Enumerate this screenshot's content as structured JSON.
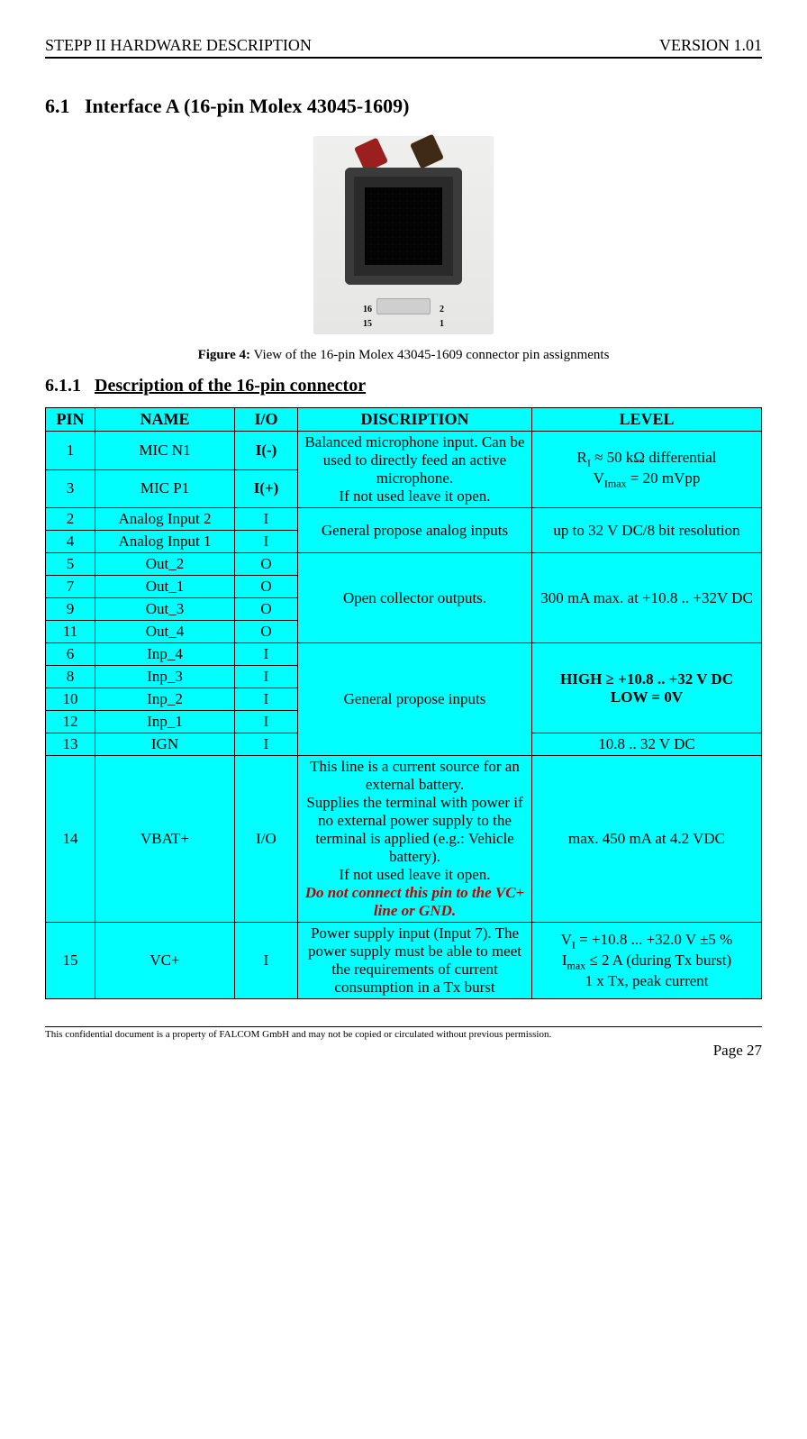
{
  "header": {
    "left": "STEPP II HARDWARE DESCRIPTION",
    "right": "VERSION 1.01"
  },
  "section": {
    "num": "6.1",
    "title": "Interface A (16-pin Molex 43045-1609)"
  },
  "figure": {
    "label_bold": "Figure 4:",
    "caption": " View of the 16-pin Molex 43045-1609 connector pin assignments",
    "pins": {
      "tl": "16",
      "tr": "2",
      "bl": "15",
      "br": "1"
    }
  },
  "subsection": {
    "num": "6.1.1",
    "title": "Description of the 16-pin connector"
  },
  "columns": {
    "pin": "PIN",
    "name": "NAME",
    "io": "I/O",
    "desc": "DISCRIPTION",
    "level": "LEVEL"
  },
  "rows": {
    "r1": {
      "pin": "1",
      "name": "MIC N1",
      "io": "I(-)"
    },
    "r3": {
      "pin": "3",
      "name": "MIC P1",
      "io": "I(+)"
    },
    "mic_desc": "Balanced microphone input. Can be used to directly feed an active microphone.\nIf not used leave it open.",
    "mic_level_l1": "R",
    "mic_level_l1b": " ≈ 50 kΩ differential",
    "mic_level_l1sub": "I",
    "mic_level_l2": "V",
    "mic_level_l2sub": "Imax",
    "mic_level_l2b": " = 20 mVpp",
    "r2": {
      "pin": "2",
      "name": "Analog Input 2",
      "io": "I"
    },
    "r4": {
      "pin": "4",
      "name": "Analog Input 1",
      "io": "I"
    },
    "analog_desc": "General propose analog inputs",
    "analog_level": "up to 32 V DC/8 bit resolution",
    "r5": {
      "pin": "5",
      "name": "Out_2",
      "io": "O"
    },
    "r7": {
      "pin": "7",
      "name": "Out_1",
      "io": "O"
    },
    "r9": {
      "pin": "9",
      "name": "Out_3",
      "io": "O"
    },
    "r11": {
      "pin": "11",
      "name": "Out_4",
      "io": "O"
    },
    "out_desc": "Open collector outputs.",
    "out_level": "300 mA max. at +10.8 .. +32V DC",
    "r6": {
      "pin": "6",
      "name": "Inp_4",
      "io": "I"
    },
    "r8": {
      "pin": "8",
      "name": "Inp_3",
      "io": "I"
    },
    "r10": {
      "pin": "10",
      "name": "Inp_2",
      "io": "I"
    },
    "r12": {
      "pin": "12",
      "name": "Inp_1",
      "io": "I"
    },
    "inp_desc": "General propose inputs",
    "inp_level_l1": "HIGH ≥ +10.8 .. +32 V DC",
    "inp_level_l2": "LOW = 0V",
    "r13": {
      "pin": "13",
      "name": "IGN",
      "io": "I",
      "level": "10.8 .. 32 V DC"
    },
    "r14": {
      "pin": "14",
      "name": "VBAT+",
      "io": "I/O",
      "desc_1": "This line is a current source for an external battery.",
      "desc_2": "Supplies the terminal with power if no external power supply to the terminal is applied (e.g.: Vehicle battery).",
      "desc_3": "If not used leave it open.",
      "desc_red": "Do not connect this pin to the VC+ line or GND.",
      "level": "max. 450 mA at 4.2 VDC"
    },
    "r15": {
      "pin": "15",
      "name": "VC+",
      "io": "I",
      "desc": "Power supply input (Input 7). The power supply must be able to meet the requirements of current consumption in a Tx burst",
      "level_l1a": "V",
      "level_l1sub": "I",
      "level_l1b": " = +10.8 ... +32.0 V ±5 %",
      "level_l2a": "I",
      "level_l2sub": "max",
      "level_l2b": " ≤ 2 A (during Tx burst)",
      "level_l3": "1 x Tx, peak current"
    }
  },
  "footer": {
    "text": "This confidential document is a property of FALCOM GmbH and may not be copied or circulated without previous permission.",
    "page": "Page 27"
  }
}
